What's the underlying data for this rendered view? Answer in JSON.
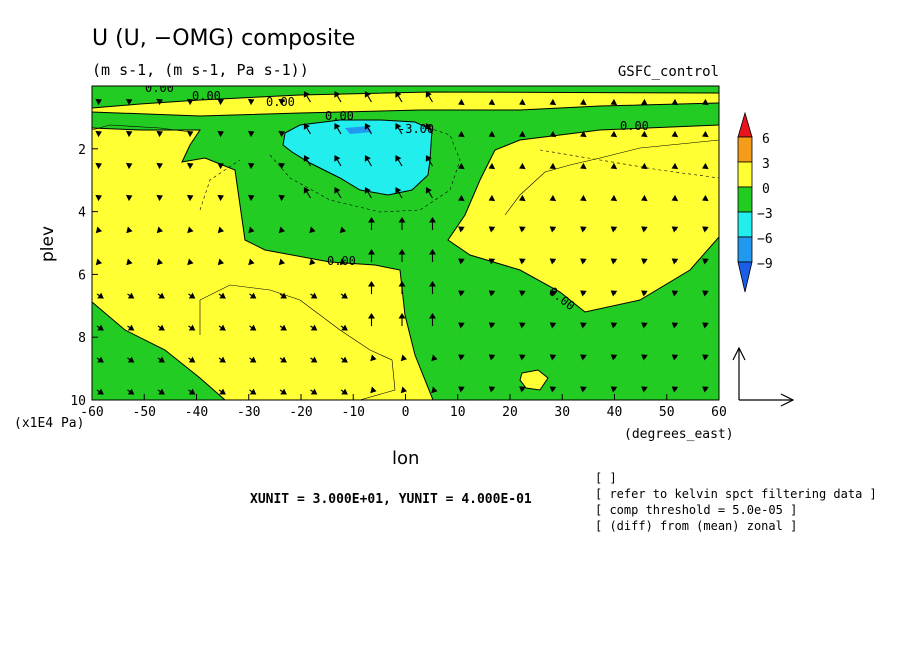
{
  "chart_data": {
    "type": "contour",
    "title": "U (U, −OMG) composite",
    "subtitle": "(m s-1, (m s-1, Pa s-1))",
    "dataset": "GSFC_control",
    "xlabel": "lon",
    "x_unit_label": "(degrees_east)",
    "ylabel": "plev",
    "y_unit_label": "(x1E4 Pa)",
    "xlim": [
      -60,
      60
    ],
    "ylim": [
      10,
      0
    ],
    "x_ticks": [
      "-60",
      "-50",
      "-40",
      "-30",
      "-20",
      "-10",
      "0",
      "10",
      "20",
      "30",
      "40",
      "50",
      "60"
    ],
    "y_ticks": [
      "2",
      "4",
      "6",
      "8",
      "10"
    ],
    "contour_labels": [
      "0.00",
      "0.00",
      "0.00",
      "0.00",
      "0.00",
      "0.00",
      "0.00",
      "-3.00"
    ],
    "colorbar": {
      "levels": [
        "6",
        "3",
        "0",
        "−3",
        "−6",
        "−9"
      ],
      "colors": {
        "gt6": "#e8131b",
        "3_6": "#f59d1a",
        "0_3": "#ffff33",
        "m3_0": "#22cc22",
        "m6_m3": "#22eeee",
        "m9_m6": "#2299ee",
        "lt_m9": "#1a5ee8"
      }
    },
    "unit_vector_label": "XUNIT = 3.000E+01, YUNIT = 4.000E-01",
    "notes": [
      "[  ]",
      "[ refer to kelvin spct filtering data ]",
      "[ comp threshold = 5.0e-05 ]",
      "[ (diff) from (mean) zonal ]"
    ]
  }
}
